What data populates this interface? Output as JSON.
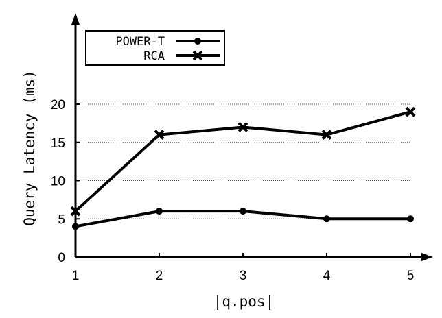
{
  "chart_data": {
    "type": "line",
    "x": [
      1,
      2,
      3,
      4,
      5
    ],
    "series": [
      {
        "name": "POWER-T",
        "marker": "circle",
        "values": [
          4,
          6,
          6,
          5,
          5
        ]
      },
      {
        "name": "RCA",
        "marker": "cross",
        "values": [
          6,
          16,
          17,
          16,
          19
        ]
      }
    ],
    "xlabel": "|q.pos|",
    "ylabel": "Query Latency (ms)",
    "xticks": [
      "1",
      "2",
      "3",
      "4",
      "5"
    ],
    "yticks": [
      "0",
      "5",
      "10",
      "15",
      "20"
    ],
    "xlim": [
      1,
      5
    ],
    "ylim": [
      0,
      20
    ],
    "grid": "horizontal dotted",
    "legend_position": "top-left",
    "line_color": "#000000"
  }
}
